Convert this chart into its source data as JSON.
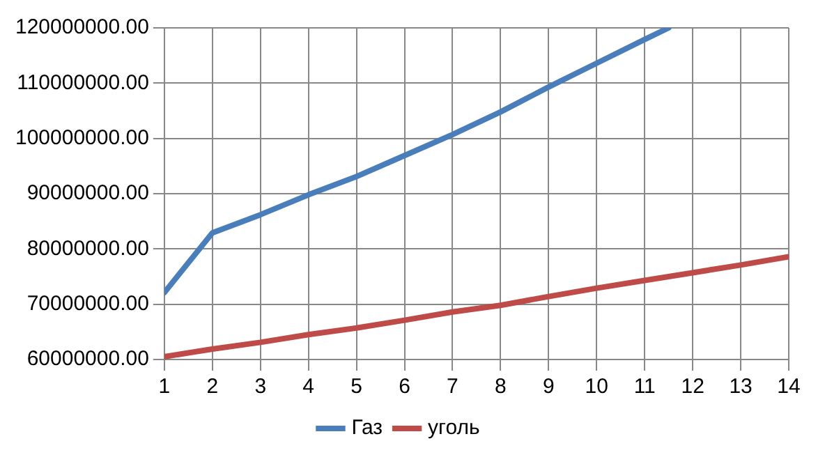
{
  "chart_data": {
    "type": "line",
    "x": [
      1,
      2,
      3,
      4,
      5,
      6,
      7,
      8,
      9,
      10,
      11,
      12,
      13,
      14
    ],
    "series": [
      {
        "name": "Газ",
        "color": "#4a7ebb",
        "x": [
          1,
          2,
          3,
          4,
          5,
          6,
          7,
          8,
          9,
          10,
          11,
          11.5
        ],
        "values": [
          72100000,
          82900000,
          86200000,
          89800000,
          93100000,
          96900000,
          100700000,
          104800000,
          109300000,
          113600000,
          117900000,
          120000000
        ]
      },
      {
        "name": "уголь",
        "color": "#be4b48",
        "values": [
          60500000,
          61900000,
          63100000,
          64500000,
          65700000,
          67100000,
          68600000,
          69800000,
          71400000,
          72900000,
          74300000,
          75700000,
          77100000,
          78600000
        ]
      }
    ],
    "xlim": [
      1,
      14
    ],
    "xticks": [
      1,
      2,
      3,
      4,
      5,
      6,
      7,
      8,
      9,
      10,
      11,
      12,
      13,
      14
    ],
    "ylim": [
      60000000,
      120000000
    ],
    "yticks": [
      {
        "value": 60000000,
        "label": "60000000.00"
      },
      {
        "value": 70000000,
        "label": "70000000.00"
      },
      {
        "value": 80000000,
        "label": "80000000.00"
      },
      {
        "value": 90000000,
        "label": "90000000.00"
      },
      {
        "value": 100000000,
        "label": "100000000.00"
      },
      {
        "value": 110000000,
        "label": "110000000.00"
      },
      {
        "value": 120000000,
        "label": "120000000.00"
      }
    ],
    "grid": true,
    "legend": "bottom",
    "marker": "none",
    "line_style": "solid"
  }
}
